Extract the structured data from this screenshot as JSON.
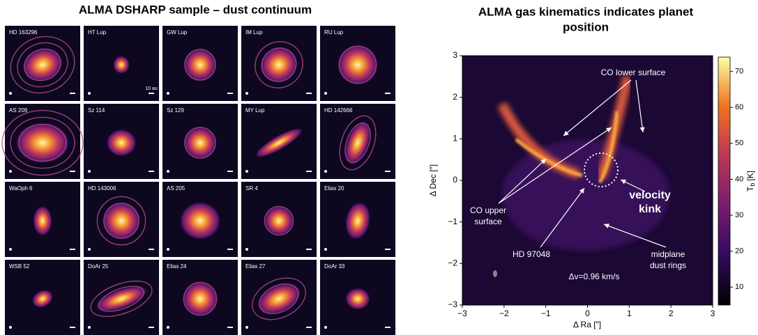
{
  "left": {
    "title": "ALMA DSHARP sample – dust continuum",
    "disks": [
      "HD 163296",
      "HT Lup",
      "GW Lup",
      "IM Lup",
      "RU Lup",
      "AS 209",
      "Sz 114",
      "Sz 129",
      "MY Lup",
      "HD 142666",
      "WaOph 6",
      "HD 143006",
      "AS 205",
      "SR 4",
      "Elias 20",
      "WSB 52",
      "DoAr 25",
      "Elias 24",
      "Elias 27",
      "DoAr 33"
    ],
    "scale_label": "10 au"
  },
  "right": {
    "title": [
      "ALMA gas kinematics indicates planet",
      "position"
    ],
    "xlabel": "Δ Ra [″]",
    "ylabel": "Δ Dec [″]",
    "xlim": [
      -3,
      3
    ],
    "ylim": [
      -3,
      3
    ],
    "xticks": [
      {
        "value": -3,
        "label": "−3"
      },
      {
        "value": -2,
        "label": "−2"
      },
      {
        "value": -1,
        "label": "−1"
      },
      0,
      1,
      2,
      3
    ],
    "yticks": [
      {
        "value": -3,
        "label": "−3"
      },
      {
        "value": -2,
        "label": "−2"
      },
      {
        "value": -1,
        "label": "−1"
      },
      0,
      1,
      2,
      3
    ],
    "colorbar_label": {
      "main": "T",
      "sub": "b",
      "unit": "[K]"
    },
    "colorbar_lim": [
      5,
      74
    ],
    "colorbar_ticks": [
      10,
      20,
      30,
      40,
      50,
      60,
      70
    ],
    "annotations": [
      [
        "CO lower surface"
      ],
      [
        "CO upper",
        "surface"
      ],
      [
        "HD 97048"
      ],
      [
        "velocity",
        "kink"
      ],
      [
        "midplane",
        "dust rings"
      ],
      [
        "Δv=0.96 km/s"
      ]
    ]
  }
}
